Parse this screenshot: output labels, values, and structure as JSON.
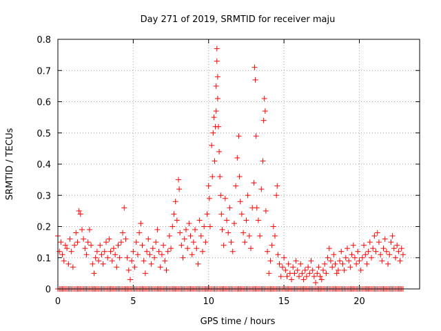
{
  "chart_data": {
    "type": "scatter",
    "title": "Day 271 of 2019, SRMTID for receiver maju",
    "xlabel": "GPS time / hours",
    "ylabel": "SRMTID / TECUs",
    "xlim": [
      0,
      24
    ],
    "ylim": [
      0,
      0.8
    ],
    "x_ticks": [
      0,
      5,
      10,
      15,
      20
    ],
    "x_tick_labels": [
      "0",
      "5",
      "10",
      "15",
      "20"
    ],
    "y_ticks": [
      0,
      0.1,
      0.2,
      0.3,
      0.4,
      0.5,
      0.6,
      0.7,
      0.8
    ],
    "y_tick_labels": [
      "0",
      "0.1",
      "0.2",
      "0.3",
      "0.4",
      "0.5",
      "0.6",
      "0.7",
      "0.8"
    ],
    "grid": true,
    "marker": "+",
    "series": [
      {
        "name": "SRMTID",
        "color": "#ff0000",
        "points": [
          [
            0.0,
            0.17
          ],
          [
            0.1,
            0.12
          ],
          [
            0.2,
            0.15
          ],
          [
            0.3,
            0.11
          ],
          [
            0.4,
            0.09
          ],
          [
            0.5,
            0.14
          ],
          [
            0.6,
            0.13
          ],
          [
            0.7,
            0.08
          ],
          [
            0.8,
            0.16
          ],
          [
            0.9,
            0.12
          ],
          [
            1.0,
            0.07
          ],
          [
            1.1,
            0.14
          ],
          [
            1.2,
            0.18
          ],
          [
            1.3,
            0.15
          ],
          [
            1.4,
            0.25
          ],
          [
            1.5,
            0.24
          ],
          [
            1.6,
            0.19
          ],
          [
            1.7,
            0.16
          ],
          [
            1.8,
            0.13
          ],
          [
            1.9,
            0.11
          ],
          [
            2.0,
            0.15
          ],
          [
            2.1,
            0.19
          ],
          [
            2.2,
            0.14
          ],
          [
            2.3,
            0.08
          ],
          [
            2.4,
            0.05
          ],
          [
            2.5,
            0.1
          ],
          [
            2.6,
            0.12
          ],
          [
            2.7,
            0.09
          ],
          [
            2.8,
            0.14
          ],
          [
            2.9,
            0.11
          ],
          [
            3.0,
            0.08
          ],
          [
            3.1,
            0.12
          ],
          [
            3.2,
            0.15
          ],
          [
            3.3,
            0.1
          ],
          [
            3.4,
            0.16
          ],
          [
            3.5,
            0.12
          ],
          [
            3.6,
            0.09
          ],
          [
            3.7,
            0.13
          ],
          [
            3.8,
            0.11
          ],
          [
            3.9,
            0.07
          ],
          [
            4.0,
            0.14
          ],
          [
            4.1,
            0.1
          ],
          [
            4.2,
            0.15
          ],
          [
            4.3,
            0.18
          ],
          [
            4.4,
            0.26
          ],
          [
            4.5,
            0.16
          ],
          [
            4.6,
            0.1
          ],
          [
            4.7,
            0.06
          ],
          [
            4.8,
            0.03
          ],
          [
            4.9,
            0.09
          ],
          [
            5.0,
            0.12
          ],
          [
            5.1,
            0.07
          ],
          [
            5.2,
            0.15
          ],
          [
            5.3,
            0.11
          ],
          [
            5.4,
            0.18
          ],
          [
            5.5,
            0.21
          ],
          [
            5.6,
            0.14
          ],
          [
            5.7,
            0.09
          ],
          [
            5.8,
            0.05
          ],
          [
            5.9,
            0.12
          ],
          [
            6.0,
            0.16
          ],
          [
            6.1,
            0.11
          ],
          [
            6.2,
            0.08
          ],
          [
            6.3,
            0.13
          ],
          [
            6.4,
            0.1
          ],
          [
            6.5,
            0.15
          ],
          [
            6.6,
            0.19
          ],
          [
            6.7,
            0.12
          ],
          [
            6.8,
            0.07
          ],
          [
            6.9,
            0.11
          ],
          [
            7.0,
            0.14
          ],
          [
            7.1,
            0.09
          ],
          [
            7.2,
            0.06
          ],
          [
            7.3,
            0.12
          ],
          [
            7.4,
            0.17
          ],
          [
            7.5,
            0.13
          ],
          [
            7.6,
            0.2
          ],
          [
            7.7,
            0.24
          ],
          [
            7.8,
            0.28
          ],
          [
            7.9,
            0.22
          ],
          [
            8.0,
            0.35
          ],
          [
            8.05,
            0.32
          ],
          [
            8.1,
            0.18
          ],
          [
            8.2,
            0.14
          ],
          [
            8.3,
            0.1
          ],
          [
            8.4,
            0.16
          ],
          [
            8.5,
            0.19
          ],
          [
            8.6,
            0.13
          ],
          [
            8.7,
            0.21
          ],
          [
            8.8,
            0.17
          ],
          [
            8.9,
            0.11
          ],
          [
            9.0,
            0.15
          ],
          [
            9.1,
            0.19
          ],
          [
            9.2,
            0.13
          ],
          [
            9.3,
            0.08
          ],
          [
            9.4,
            0.22
          ],
          [
            9.5,
            0.17
          ],
          [
            9.6,
            0.12
          ],
          [
            9.7,
            0.2
          ],
          [
            9.8,
            0.15
          ],
          [
            9.9,
            0.24
          ],
          [
            10.0,
            0.33
          ],
          [
            10.05,
            0.29
          ],
          [
            10.1,
            0.2
          ],
          [
            10.2,
            0.46
          ],
          [
            10.25,
            0.36
          ],
          [
            10.3,
            0.5
          ],
          [
            10.35,
            0.55
          ],
          [
            10.4,
            0.41
          ],
          [
            10.45,
            0.52
          ],
          [
            10.5,
            0.65
          ],
          [
            10.5,
            0.57
          ],
          [
            10.55,
            0.77
          ],
          [
            10.55,
            0.73
          ],
          [
            10.6,
            0.68
          ],
          [
            10.6,
            0.61
          ],
          [
            10.65,
            0.52
          ],
          [
            10.7,
            0.44
          ],
          [
            10.75,
            0.36
          ],
          [
            10.8,
            0.3
          ],
          [
            10.85,
            0.24
          ],
          [
            10.9,
            0.19
          ],
          [
            11.0,
            0.14
          ],
          [
            11.1,
            0.29
          ],
          [
            11.2,
            0.22
          ],
          [
            11.3,
            0.18
          ],
          [
            11.4,
            0.26
          ],
          [
            11.5,
            0.15
          ],
          [
            11.6,
            0.12
          ],
          [
            11.7,
            0.21
          ],
          [
            11.8,
            0.33
          ],
          [
            11.9,
            0.42
          ],
          [
            12.0,
            0.49
          ],
          [
            12.05,
            0.36
          ],
          [
            12.1,
            0.28
          ],
          [
            12.2,
            0.24
          ],
          [
            12.3,
            0.18
          ],
          [
            12.4,
            0.15
          ],
          [
            12.5,
            0.22
          ],
          [
            12.6,
            0.3
          ],
          [
            12.7,
            0.17
          ],
          [
            12.8,
            0.13
          ],
          [
            12.9,
            0.26
          ],
          [
            13.0,
            0.34
          ],
          [
            13.05,
            0.71
          ],
          [
            13.1,
            0.67
          ],
          [
            13.15,
            0.49
          ],
          [
            13.2,
            0.26
          ],
          [
            13.3,
            0.22
          ],
          [
            13.4,
            0.17
          ],
          [
            13.5,
            0.32
          ],
          [
            13.6,
            0.41
          ],
          [
            13.65,
            0.54
          ],
          [
            13.7,
            0.61
          ],
          [
            13.75,
            0.57
          ],
          [
            13.8,
            0.25
          ],
          [
            13.9,
            0.12
          ],
          [
            14.0,
            0.05
          ],
          [
            14.1,
            0.09
          ],
          [
            14.2,
            0.14
          ],
          [
            14.3,
            0.2
          ],
          [
            14.4,
            0.17
          ],
          [
            14.5,
            0.3
          ],
          [
            14.55,
            0.33
          ],
          [
            14.6,
            0.11
          ],
          [
            14.7,
            0.08
          ],
          [
            14.8,
            0.04
          ],
          [
            14.9,
            0.07
          ],
          [
            15.0,
            0.1
          ],
          [
            15.1,
            0.06
          ],
          [
            15.2,
            0.04
          ],
          [
            15.3,
            0.08
          ],
          [
            15.4,
            0.05
          ],
          [
            15.5,
            0.03
          ],
          [
            15.6,
            0.07
          ],
          [
            15.7,
            0.05
          ],
          [
            15.8,
            0.09
          ],
          [
            15.9,
            0.06
          ],
          [
            16.0,
            0.04
          ],
          [
            16.1,
            0.08
          ],
          [
            16.2,
            0.05
          ],
          [
            16.3,
            0.03
          ],
          [
            16.4,
            0.06
          ],
          [
            16.5,
            0.04
          ],
          [
            16.6,
            0.07
          ],
          [
            16.7,
            0.05
          ],
          [
            16.8,
            0.09
          ],
          [
            16.9,
            0.06
          ],
          [
            17.0,
            0.04
          ],
          [
            17.1,
            0.02
          ],
          [
            17.2,
            0.05
          ],
          [
            17.3,
            0.07
          ],
          [
            17.4,
            0.04
          ],
          [
            17.5,
            0.03
          ],
          [
            17.6,
            0.06
          ],
          [
            17.7,
            0.08
          ],
          [
            17.8,
            0.05
          ],
          [
            17.9,
            0.1
          ],
          [
            18.0,
            0.13
          ],
          [
            18.1,
            0.09
          ],
          [
            18.2,
            0.07
          ],
          [
            18.3,
            0.11
          ],
          [
            18.4,
            0.08
          ],
          [
            18.5,
            0.05
          ],
          [
            18.6,
            0.06
          ],
          [
            18.7,
            0.09
          ],
          [
            18.8,
            0.12
          ],
          [
            18.9,
            0.08
          ],
          [
            19.0,
            0.06
          ],
          [
            19.1,
            0.1
          ],
          [
            19.2,
            0.13
          ],
          [
            19.3,
            0.09
          ],
          [
            19.4,
            0.07
          ],
          [
            19.5,
            0.11
          ],
          [
            19.6,
            0.14
          ],
          [
            19.7,
            0.1
          ],
          [
            19.8,
            0.08
          ],
          [
            19.9,
            0.12
          ],
          [
            20.0,
            0.09
          ],
          [
            20.1,
            0.06
          ],
          [
            20.2,
            0.1
          ],
          [
            20.3,
            0.14
          ],
          [
            20.4,
            0.11
          ],
          [
            20.5,
            0.08
          ],
          [
            20.6,
            0.12
          ],
          [
            20.7,
            0.15
          ],
          [
            20.8,
            0.1
          ],
          [
            20.9,
            0.13
          ],
          [
            21.0,
            0.17
          ],
          [
            21.1,
            0.12
          ],
          [
            21.2,
            0.18
          ],
          [
            21.3,
            0.15
          ],
          [
            21.4,
            0.11
          ],
          [
            21.5,
            0.09
          ],
          [
            21.6,
            0.13
          ],
          [
            21.7,
            0.16
          ],
          [
            21.8,
            0.12
          ],
          [
            21.9,
            0.08
          ],
          [
            22.0,
            0.11
          ],
          [
            22.1,
            0.15
          ],
          [
            22.2,
            0.17
          ],
          [
            22.3,
            0.13
          ],
          [
            22.4,
            0.1
          ],
          [
            22.5,
            0.14
          ],
          [
            22.6,
            0.12
          ],
          [
            22.7,
            0.09
          ],
          [
            22.8,
            0.13
          ],
          [
            22.9,
            0.11
          ]
        ]
      }
    ],
    "baseline_markers": {
      "y": 0,
      "x_start": 0,
      "x_end": 22.9,
      "x_step": 0.1
    }
  }
}
